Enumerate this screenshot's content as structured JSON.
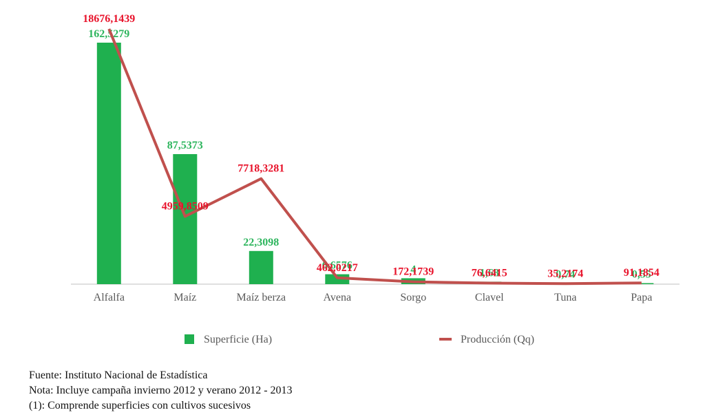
{
  "chart_data": {
    "type": "bar",
    "categories": [
      "Alfalfa",
      "Maíz",
      "Maíz berza",
      "Avena",
      "Sorgo",
      "Clavel",
      "Tuna",
      "Papa"
    ],
    "series": [
      {
        "name": "Superficie (Ha)",
        "type": "bar",
        "values": [
          162.5279,
          87.5373,
          22.3098,
          6.6576,
          4,
          1.68,
          0.74,
          0.55
        ],
        "labels": [
          "162,5279",
          "87,5373",
          "22,3098",
          "6,6576",
          "4",
          "1,68",
          "0,74",
          "0,55"
        ],
        "color": "#1fb04f",
        "label_color": "#2db55d"
      },
      {
        "name": "Producción (Qq)",
        "type": "line",
        "values": [
          18676.1439,
          4959.8509,
          7718.3281,
          462.0217,
          172.1739,
          76.6415,
          35.2174,
          91.1854
        ],
        "labels": [
          "18676,1439",
          "4959,8509",
          "7718,3281",
          "462,0217",
          "172,1739",
          "76,6415",
          "35,2174",
          "91,1854"
        ],
        "color": "#c0504d",
        "label_color": "#e8132b"
      }
    ],
    "axis_color": "#bfbfbf",
    "legend_position": "bottom",
    "grid": false
  },
  "notes": [
    "Fuente: Instituto Nacional de Estadística",
    "Nota: Incluye campaña invierno 2012 y verano 2012 - 2013",
    "(1): Comprende superficies con cultivos sucesivos"
  ]
}
